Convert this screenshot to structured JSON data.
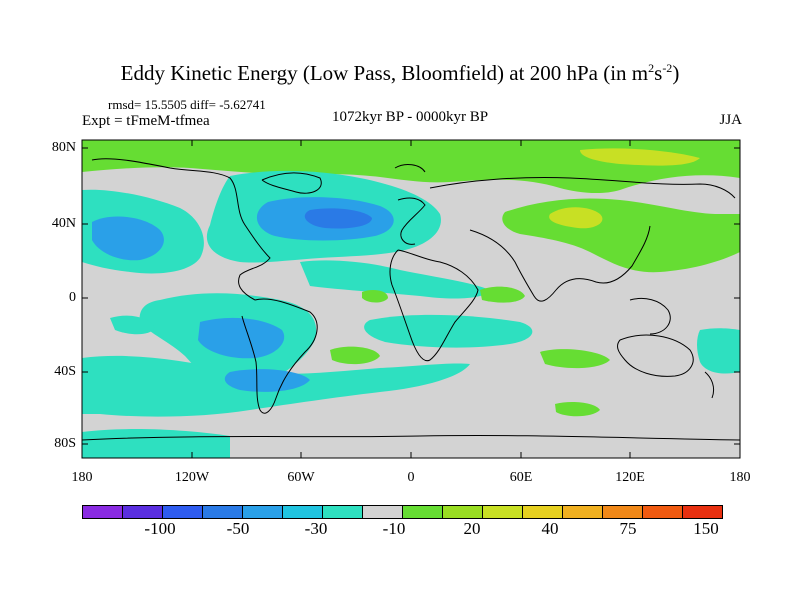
{
  "title": {
    "main": "Eddy Kinetic Energy (Low Pass, Bloomfield) at 200 hPa (in m",
    "sup1": "2",
    "mid": "s",
    "sup2": "-2",
    "end": ")"
  },
  "stats": "rmsd= 15.5505 diff= -5.62741",
  "expt": "Expt = tFmeM-tfmea",
  "period": "1072kyr BP - 0000kyr BP",
  "season": "JJA",
  "y_labels": [
    "80N",
    "40N",
    "0",
    "40S",
    "80S"
  ],
  "x_labels": [
    "180",
    "120W",
    "60W",
    "0",
    "60E",
    "120E",
    "180"
  ],
  "colorbar": {
    "colors": [
      "#8a2be2",
      "#5a2ee0",
      "#2e5cf0",
      "#2a7ae6",
      "#2aa0e8",
      "#20c4e0",
      "#2ee0c0",
      "#d3d3d3",
      "#66dd33",
      "#99dd22",
      "#c8e024",
      "#e6d020",
      "#f0b020",
      "#f08818",
      "#f05a10",
      "#e83010"
    ],
    "labels": [
      "-100",
      "-50",
      "-30",
      "-10",
      "20",
      "40",
      "75",
      "150"
    ]
  },
  "colors": {
    "neutral": "#d3d3d3",
    "green": "#66dd33",
    "light_green": "#99dd22",
    "yellow_green": "#c8e024",
    "cyan": "#2ee0c0",
    "light_blue": "#20c4e0",
    "blue": "#2aa0e8",
    "mid_blue": "#2a7ae6"
  }
}
